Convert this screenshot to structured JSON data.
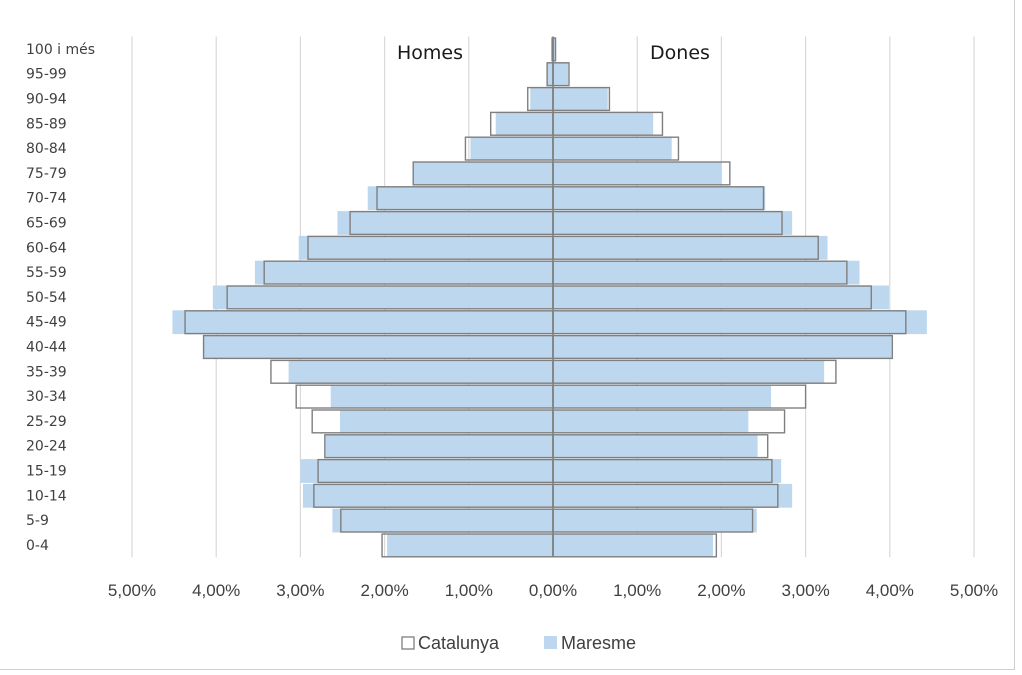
{
  "chart_data": {
    "type": "bar",
    "orientation": "horizontal",
    "chart_kind": "population-pyramid",
    "categories": [
      "0-4",
      "5-9",
      "10-14",
      "15-19",
      "20-24",
      "25-29",
      "30-34",
      "35-39",
      "40-44",
      "45-49",
      "50-54",
      "55-59",
      "60-64",
      "65-69",
      "70-74",
      "75-79",
      "80-84",
      "85-89",
      "90-94",
      "95-99",
      "100 i més"
    ],
    "annotations": {
      "left": "Homes",
      "right": "Dones"
    },
    "series": [
      {
        "name": "Catalunya",
        "style": "outline",
        "color": "#7f7f7f",
        "homes": [
          2.03,
          2.52,
          2.84,
          2.79,
          2.71,
          2.86,
          3.05,
          3.35,
          4.15,
          4.37,
          3.87,
          3.43,
          2.91,
          2.41,
          2.09,
          1.66,
          1.04,
          0.74,
          0.3,
          0.07,
          0.01
        ],
        "dones": [
          1.94,
          2.37,
          2.67,
          2.6,
          2.55,
          2.75,
          3.0,
          3.36,
          4.03,
          4.19,
          3.78,
          3.49,
          3.15,
          2.72,
          2.5,
          2.1,
          1.49,
          1.3,
          0.67,
          0.19,
          0.03
        ]
      },
      {
        "name": "Maresme",
        "style": "fill",
        "color": "#bdd7ee",
        "homes": [
          1.97,
          2.62,
          2.97,
          3.0,
          2.7,
          2.53,
          2.64,
          3.14,
          4.15,
          4.52,
          4.04,
          3.54,
          3.02,
          2.56,
          2.2,
          1.66,
          0.98,
          0.68,
          0.27,
          0.07,
          0.02
        ],
        "dones": [
          1.9,
          2.42,
          2.84,
          2.71,
          2.43,
          2.32,
          2.59,
          3.22,
          4.02,
          4.44,
          3.99,
          3.64,
          3.26,
          2.84,
          2.52,
          2.0,
          1.41,
          1.19,
          0.65,
          0.18,
          0.03
        ]
      }
    ],
    "xlim": [
      -5,
      5
    ],
    "x_ticks": [
      "5,00%",
      "4,00%",
      "3,00%",
      "2,00%",
      "1,00%",
      "0,00%",
      "1,00%",
      "2,00%",
      "3,00%",
      "4,00%",
      "5,00%"
    ],
    "grid": "vertical",
    "legend_position": "bottom"
  },
  "legend": [
    {
      "label": "Catalunya",
      "symbol": "outline"
    },
    {
      "label": "Maresme",
      "symbol": "fill"
    }
  ]
}
